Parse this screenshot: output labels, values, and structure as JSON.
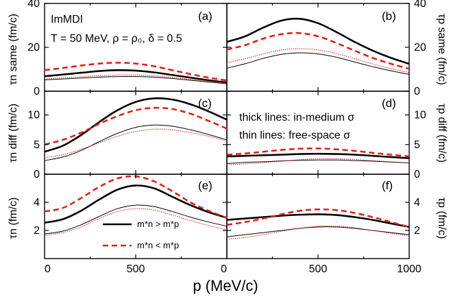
{
  "chart_data": {
    "type": "line",
    "xlabel": "p (MeV/c)",
    "model_label": "ImMDI",
    "params_label": "T = 50 MeV, ρ = ρ₀, δ = 0.5",
    "note_thick": "thick lines: in-medium σ",
    "note_thin": "thin lines: free-space σ",
    "legend": [
      "m*n > m*p",
      "m*n < m*p"
    ],
    "style": {
      "solid_color": "#000000",
      "dashed_color": "#e0201b"
    },
    "xlim_left": [
      0,
      1000
    ],
    "xlim_right": [
      0,
      1000
    ],
    "x_ticks_left": [
      "0",
      "500",
      "0"
    ],
    "x_ticks_right": [
      "500",
      "1000"
    ],
    "rows": [
      {
        "ylim": [
          0,
          40
        ],
        "y_ticks": [
          "0",
          "20",
          "40"
        ],
        "ylabel_left": "τn same (fm/c)",
        "ylabel_right": "τp same (fm/c)"
      },
      {
        "ylim": [
          0,
          14
        ],
        "y_ticks": [
          "0",
          "5",
          "10"
        ],
        "ylabel_left": "τn diff (fm/c)",
        "ylabel_right": "τp diff (fm/c)"
      },
      {
        "ylim": [
          0,
          6
        ],
        "y_ticks": [
          "2",
          "4"
        ],
        "ylabel_left": "τn (fm/c)",
        "ylabel_right": "τp (fm/c)"
      }
    ],
    "panels": [
      {
        "label": "(a)",
        "row": 0,
        "col": 0,
        "x": [
          0,
          100,
          200,
          300,
          400,
          500,
          600,
          700,
          800,
          900,
          1000
        ],
        "series": [
          {
            "style": "thick-solid",
            "values": [
              6.8,
              7.6,
              8.4,
              9.2,
              9.6,
              9.4,
              8.6,
              7.4,
              6.2,
              5.0,
              4.0
            ]
          },
          {
            "style": "thick-dashed",
            "values": [
              9.6,
              10.6,
              11.7,
              12.6,
              13.0,
              12.6,
              11.4,
              9.6,
              7.8,
              6.2,
              4.9
            ]
          },
          {
            "style": "thin-solid",
            "values": [
              5.2,
              5.6,
              6.0,
              6.4,
              6.7,
              6.7,
              6.4,
              5.8,
              5.0,
              4.2,
              3.4
            ]
          },
          {
            "style": "thin-dotted",
            "values": [
              5.6,
              6.1,
              6.6,
              7.1,
              7.4,
              7.4,
              7.0,
              6.3,
              5.4,
              4.5,
              3.7
            ]
          }
        ]
      },
      {
        "label": "(b)",
        "row": 0,
        "col": 1,
        "x": [
          0,
          100,
          200,
          300,
          400,
          500,
          600,
          700,
          800,
          900,
          1000
        ],
        "series": [
          {
            "style": "thick-solid",
            "values": [
              22.5,
              25.0,
              29.0,
              32.2,
              33.0,
              31.0,
              27.0,
              22.5,
              18.5,
              15.2,
              12.5
            ]
          },
          {
            "style": "thick-dashed",
            "values": [
              19.0,
              21.0,
              24.0,
              26.0,
              26.5,
              25.0,
              22.0,
              18.5,
              15.2,
              12.5,
              10.2
            ]
          },
          {
            "style": "thin-solid",
            "values": [
              10.5,
              12.5,
              15.0,
              16.8,
              17.5,
              17.0,
              15.5,
              13.3,
              11.2,
              9.3,
              7.7
            ]
          },
          {
            "style": "thin-dotted",
            "values": [
              13.0,
              14.8,
              17.0,
              18.8,
              19.4,
              18.8,
              17.2,
              14.8,
              12.4,
              10.3,
              8.5
            ]
          }
        ]
      },
      {
        "label": "(c)",
        "row": 1,
        "col": 0,
        "x": [
          0,
          100,
          200,
          300,
          400,
          500,
          600,
          700,
          800,
          900,
          1000
        ],
        "series": [
          {
            "style": "thick-solid",
            "values": [
              3.8,
              4.8,
              6.6,
              8.8,
              10.8,
              12.2,
              12.8,
              12.6,
              11.8,
              10.6,
              9.2
            ]
          },
          {
            "style": "thick-dashed",
            "values": [
              5.0,
              5.8,
              7.0,
              8.5,
              9.8,
              10.8,
              11.2,
              11.0,
              10.2,
              9.0,
              7.7
            ]
          },
          {
            "style": "thin-solid",
            "values": [
              2.3,
              2.9,
              4.0,
              5.5,
              6.9,
              7.9,
              8.3,
              8.1,
              7.5,
              6.7,
              5.8
            ]
          },
          {
            "style": "thin-dotted",
            "values": [
              2.8,
              3.3,
              4.2,
              5.3,
              6.4,
              7.2,
              7.6,
              7.5,
              7.0,
              6.4,
              5.6
            ]
          }
        ]
      },
      {
        "label": "(d)",
        "row": 1,
        "col": 1,
        "x": [
          0,
          100,
          200,
          300,
          400,
          500,
          600,
          700,
          800,
          900,
          1000
        ],
        "series": [
          {
            "style": "thick-solid",
            "values": [
              3.0,
              3.1,
              3.2,
              3.3,
              3.4,
              3.45,
              3.4,
              3.3,
              3.1,
              2.9,
              2.7
            ]
          },
          {
            "style": "thick-dashed",
            "values": [
              3.3,
              3.5,
              3.8,
              4.1,
              4.3,
              4.35,
              4.2,
              3.95,
              3.6,
              3.3,
              3.0
            ]
          },
          {
            "style": "thin-solid",
            "values": [
              1.8,
              2.0,
              2.1,
              2.25,
              2.35,
              2.4,
              2.4,
              2.3,
              2.2,
              2.05,
              1.9
            ]
          },
          {
            "style": "thin-dotted",
            "values": [
              1.6,
              1.75,
              1.95,
              2.2,
              2.45,
              2.6,
              2.6,
              2.5,
              2.3,
              2.1,
              1.9
            ]
          }
        ]
      },
      {
        "label": "(e)",
        "row": 2,
        "col": 0,
        "x": [
          0,
          100,
          200,
          300,
          400,
          500,
          600,
          700,
          800,
          900,
          1000
        ],
        "series": [
          {
            "style": "thick-solid",
            "values": [
              2.55,
              2.8,
              3.4,
              4.2,
              4.9,
              5.2,
              5.0,
              4.4,
              3.8,
              3.3,
              2.9
            ]
          },
          {
            "style": "thick-dashed",
            "values": [
              3.35,
              3.6,
              4.3,
              5.1,
              5.7,
              5.85,
              5.5,
              4.8,
              4.0,
              3.4,
              2.9
            ]
          },
          {
            "style": "thin-solid",
            "values": [
              1.75,
              1.95,
              2.4,
              3.0,
              3.55,
              3.8,
              3.7,
              3.35,
              2.95,
              2.6,
              2.3
            ]
          },
          {
            "style": "thin-dotted",
            "values": [
              1.65,
              1.85,
              2.25,
              2.85,
              3.35,
              3.55,
              3.45,
              3.1,
              2.7,
              2.35,
              2.05
            ]
          }
        ]
      },
      {
        "label": "(f)",
        "row": 2,
        "col": 1,
        "x": [
          0,
          100,
          200,
          300,
          400,
          500,
          600,
          700,
          800,
          900,
          1000
        ],
        "series": [
          {
            "style": "thick-solid",
            "values": [
              2.75,
              2.85,
              2.95,
              3.05,
              3.12,
              3.15,
              3.1,
              2.95,
              2.75,
              2.5,
              2.25
            ]
          },
          {
            "style": "thick-dashed",
            "values": [
              2.4,
              2.6,
              2.85,
              3.15,
              3.4,
              3.5,
              3.45,
              3.25,
              2.95,
              2.6,
              2.25
            ]
          },
          {
            "style": "thin-solid",
            "values": [
              1.55,
              1.7,
              1.85,
              2.0,
              2.15,
              2.25,
              2.25,
              2.15,
              2.0,
              1.85,
              1.7
            ]
          },
          {
            "style": "thin-dotted",
            "values": [
              1.4,
              1.5,
              1.7,
              1.95,
              2.15,
              2.3,
              2.3,
              2.2,
              2.0,
              1.8,
              1.6
            ]
          }
        ]
      }
    ]
  }
}
